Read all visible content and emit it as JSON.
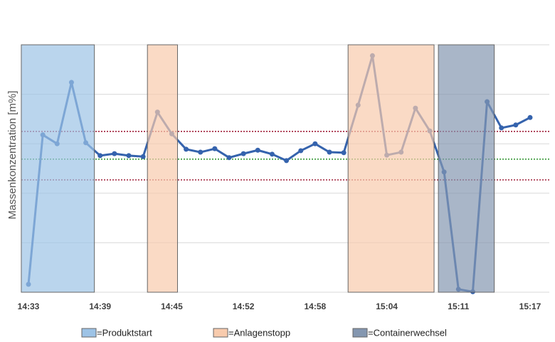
{
  "chart_data": {
    "type": "line",
    "y_label": "Massenkonzentration [m%]",
    "categories": [
      "14:33",
      null,
      null,
      null,
      null,
      "14:39",
      null,
      null,
      null,
      null,
      "14:45",
      null,
      null,
      null,
      null,
      "14:52",
      null,
      null,
      null,
      null,
      "14:58",
      null,
      null,
      null,
      null,
      "15:04",
      null,
      null,
      null,
      null,
      "15:11",
      null,
      null,
      null,
      null,
      "15:17"
    ],
    "series": [
      {
        "color": "#3563ad",
        "values": [
          0.16,
          3.18,
          3.0,
          4.24,
          3.02,
          2.76,
          2.8,
          2.76,
          2.74,
          3.64,
          3.2,
          2.89,
          2.83,
          2.9,
          2.72,
          2.8,
          2.87,
          2.79,
          2.66,
          2.86,
          3.0,
          2.83,
          2.82,
          3.78,
          4.78,
          2.77,
          2.83,
          3.72,
          3.26,
          2.43,
          0.06,
          0.01,
          3.85,
          3.32,
          3.38,
          3.53
        ]
      }
    ],
    "ylim": [
      0,
      5
    ],
    "ygrid": [
      0,
      1,
      2,
      3,
      4,
      5
    ],
    "grid": true,
    "reference_lines": [
      {
        "value": 3.25,
        "color": "#a0203a"
      },
      {
        "value": 2.69,
        "color": "#3a9a3a"
      },
      {
        "value": 2.27,
        "color": "#a0203a"
      }
    ],
    "regions": [
      {
        "name": "=Produktstart",
        "color": "#9dc3e6",
        "range": [
          -0.5,
          4.6
        ]
      },
      {
        "name": "=Anlagenstopp",
        "color": "#f8cbad",
        "range": [
          8.3,
          10.4
        ]
      },
      {
        "name": "=Anlagenstopp",
        "color": "#f8cbad",
        "range": [
          22.3,
          28.3
        ]
      },
      {
        "name": "=Containerwechsel",
        "color": "#8497b0",
        "range": [
          28.6,
          32.5
        ]
      }
    ],
    "legend": [
      {
        "name": "=Produktstart",
        "color": "#9dc3e6"
      },
      {
        "name": "=Anlagenstopp",
        "color": "#f8cbad"
      },
      {
        "name": "=Containerwechsel",
        "color": "#8497b0"
      }
    ]
  }
}
